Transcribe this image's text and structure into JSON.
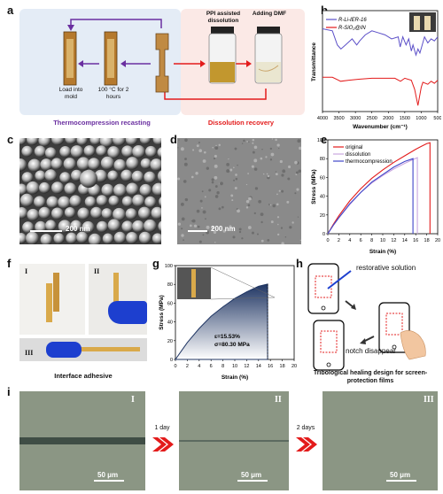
{
  "panels": {
    "a": "a",
    "b": "b",
    "c": "c",
    "d": "d",
    "e": "e",
    "f": "f",
    "g": "g",
    "h": "h",
    "i": "i"
  },
  "panel_a": {
    "left_caption": "Thermocompression recasting",
    "right_caption": "Dissolution recovery",
    "step_load": "Load into mold",
    "step_heat": "100 °C for 2 hours",
    "step_ppi": "PPI assisted dissolution",
    "step_dmf": "Adding DMF",
    "colors": {
      "purple": "#6a2fa0",
      "red": "#e31b1b",
      "left_bg": "#e4ecf6",
      "right_bg": "#fbe9e6"
    }
  },
  "panel_c": {
    "scale": "200 nm"
  },
  "panel_d": {
    "scale": "200 nm"
  },
  "panel_f": {
    "roman_1": "I",
    "roman_2": "II",
    "roman_3": "III",
    "caption": "Interface adhesive"
  },
  "panel_g": {
    "strain_text": "ε=15.53%",
    "stress_text": "σ=80.30 MPa"
  },
  "panel_h": {
    "restorative": "restorative solution",
    "notch": "notch disappear",
    "caption": "Tribological healing design for screen-protection films"
  },
  "panel_i": {
    "roman_1": "I",
    "roman_2": "II",
    "roman_3": "III",
    "day1": "1 day",
    "day2": "2 days",
    "scale1": "50 μm",
    "scale2": "50 μm",
    "scale3": "50 μm"
  },
  "chart_data": [
    {
      "id": "b",
      "type": "line",
      "xlabel": "Wavenumber (cm⁻¹)",
      "ylabel": "Transmittance",
      "xlim": [
        4000,
        500
      ],
      "xticks": [
        4000,
        3500,
        3000,
        2500,
        2000,
        1500,
        1000,
        500
      ],
      "series": [
        {
          "name": "R-Li-IER-16",
          "color": "#5b4fc8",
          "x": [
            4000,
            3700,
            3550,
            3440,
            3300,
            3100,
            2960,
            2870,
            2700,
            2500,
            2300,
            2100,
            1900,
            1700,
            1640,
            1560,
            1460,
            1380,
            1300,
            1250,
            1160,
            1100,
            1040,
            900,
            800,
            700,
            600,
            500
          ],
          "y": [
            0.82,
            0.8,
            0.66,
            0.62,
            0.66,
            0.72,
            0.66,
            0.7,
            0.76,
            0.8,
            0.78,
            0.76,
            0.72,
            0.74,
            0.64,
            0.74,
            0.66,
            0.72,
            0.6,
            0.66,
            0.56,
            0.62,
            0.58,
            0.74,
            0.68,
            0.72,
            0.7,
            0.74
          ]
        },
        {
          "name": "R-SiO₂@IN",
          "color": "#e31b1b",
          "x": [
            4000,
            3700,
            3450,
            3200,
            2900,
            2500,
            2000,
            1800,
            1630,
            1500,
            1300,
            1200,
            1100,
            1000,
            950,
            800,
            700,
            600,
            500
          ],
          "y": [
            0.34,
            0.34,
            0.3,
            0.31,
            0.32,
            0.33,
            0.33,
            0.33,
            0.3,
            0.33,
            0.31,
            0.22,
            0.06,
            0.24,
            0.29,
            0.27,
            0.3,
            0.28,
            0.31
          ]
        }
      ]
    },
    {
      "id": "e",
      "type": "line",
      "xlabel": "Strain (%)",
      "ylabel": "Stress (MPa)",
      "xlim": [
        0,
        20
      ],
      "ylim": [
        0,
        100
      ],
      "xticks": [
        0,
        2,
        4,
        6,
        8,
        10,
        12,
        14,
        16,
        18,
        20
      ],
      "yticks": [
        0,
        20,
        40,
        60,
        80,
        100
      ],
      "series": [
        {
          "name": "original",
          "color": "#e31b1b",
          "x": [
            0,
            1,
            2,
            4,
            6,
            8,
            10,
            12,
            14,
            16,
            17,
            18,
            18.6,
            18.6
          ],
          "y": [
            0,
            10,
            19,
            35,
            48,
            59,
            68,
            76,
            83,
            90,
            93,
            96,
            97,
            0
          ]
        },
        {
          "name": "dissolution",
          "color": "#c9a6e0",
          "x": [
            0,
            1,
            2,
            4,
            6,
            8,
            10,
            12,
            14,
            15.5,
            16.3,
            16.3
          ],
          "y": [
            0,
            9,
            17,
            31,
            44,
            54,
            62,
            69,
            75,
            79,
            81,
            0
          ]
        },
        {
          "name": "thermocompression",
          "color": "#3f45c8",
          "x": [
            0,
            1,
            2,
            4,
            6,
            8,
            10,
            12,
            14,
            15.5,
            15.5
          ],
          "y": [
            0,
            9,
            17,
            32,
            44,
            55,
            63,
            71,
            77,
            80,
            0
          ]
        }
      ]
    },
    {
      "id": "g",
      "type": "area",
      "xlabel": "Strain (%)",
      "ylabel": "Stress (MPa)",
      "xlim": [
        0,
        20
      ],
      "ylim": [
        0,
        100
      ],
      "xticks": [
        0,
        2,
        4,
        6,
        8,
        10,
        12,
        14,
        16,
        18,
        20
      ],
      "yticks": [
        0,
        20,
        40,
        60,
        80,
        100
      ],
      "series": [
        {
          "color": "#1f3563",
          "x": [
            0,
            1,
            2,
            4,
            6,
            8,
            10,
            12,
            14,
            15.53
          ],
          "y": [
            0,
            9,
            18,
            33,
            46,
            56,
            65,
            72,
            78,
            80.3
          ]
        }
      ]
    }
  ]
}
